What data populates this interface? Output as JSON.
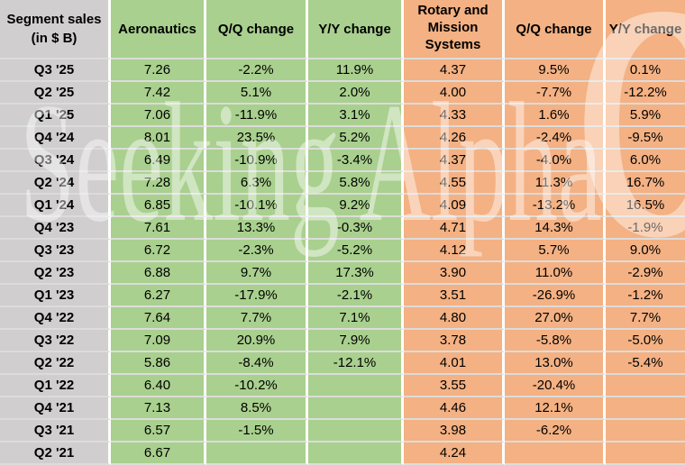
{
  "chart_data": {
    "type": "table",
    "row_header": {
      "line1": "Segment sales",
      "line2": "(in $ B)"
    },
    "columns": [
      "Aeronautics",
      "Q/Q change",
      "Y/Y change",
      "Rotary and Mission Systems",
      "Q/Q change",
      "Y/Y change"
    ],
    "rows": [
      [
        "Q3 '25",
        "7.26",
        "-2.2%",
        "11.9%",
        "4.37",
        "9.5%",
        "0.1%"
      ],
      [
        "Q2 '25",
        "7.42",
        "5.1%",
        "2.0%",
        "4.00",
        "-7.7%",
        "-12.2%"
      ],
      [
        "Q1 '25",
        "7.06",
        "-11.9%",
        "3.1%",
        "4.33",
        "1.6%",
        "5.9%"
      ],
      [
        "Q4 '24",
        "8.01",
        "23.5%",
        "5.2%",
        "4.26",
        "-2.4%",
        "-9.5%"
      ],
      [
        "Q3 '24",
        "6.49",
        "-10.9%",
        "-3.4%",
        "4.37",
        "-4.0%",
        "6.0%"
      ],
      [
        "Q2 '24",
        "7.28",
        "6.3%",
        "5.8%",
        "4.55",
        "11.3%",
        "16.7%"
      ],
      [
        "Q1 '24",
        "6.85",
        "-10.1%",
        "9.2%",
        "4.09",
        "-13.2%",
        "16.5%"
      ],
      [
        "Q4 '23",
        "7.61",
        "13.3%",
        "-0.3%",
        "4.71",
        "14.3%",
        "-1.9%"
      ],
      [
        "Q3 '23",
        "6.72",
        "-2.3%",
        "-5.2%",
        "4.12",
        "5.7%",
        "9.0%"
      ],
      [
        "Q2 '23",
        "6.88",
        "9.7%",
        "17.3%",
        "3.90",
        "11.0%",
        "-2.9%"
      ],
      [
        "Q1 '23",
        "6.27",
        "-17.9%",
        "-2.1%",
        "3.51",
        "-26.9%",
        "-1.2%"
      ],
      [
        "Q4 '22",
        "7.64",
        "7.7%",
        "7.1%",
        "4.80",
        "27.0%",
        "7.7%"
      ],
      [
        "Q3 '22",
        "7.09",
        "20.9%",
        "7.9%",
        "3.78",
        "-5.8%",
        "-5.0%"
      ],
      [
        "Q2 '22",
        "5.86",
        "-8.4%",
        "-12.1%",
        "4.01",
        "13.0%",
        "-5.4%"
      ],
      [
        "Q1 '22",
        "6.40",
        "-10.2%",
        "",
        "3.55",
        "-20.4%",
        ""
      ],
      [
        "Q4 '21",
        "7.13",
        "8.5%",
        "",
        "4.46",
        "12.1%",
        ""
      ],
      [
        "Q3 '21",
        "6.57",
        "-1.5%",
        "",
        "3.98",
        "-6.2%",
        ""
      ],
      [
        "Q2 '21",
        "6.67",
        "",
        "",
        "4.24",
        "",
        ""
      ]
    ]
  },
  "watermark": {
    "text": "Seeking Alpha",
    "alpha_glyph": "α"
  },
  "colors": {
    "green": "#a9d08e",
    "orange": "#f4b183",
    "gray": "#d0cece"
  }
}
